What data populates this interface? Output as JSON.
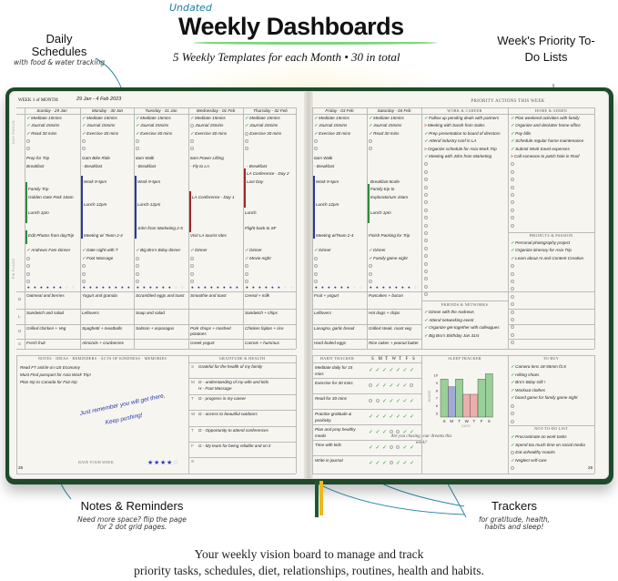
{
  "header": {
    "tag": "Undated",
    "title": "Weekly Dashboards",
    "subtitle": "5 Weekly Templates for each Month  •  30 in total"
  },
  "annotations": {
    "daily": {
      "title": "Daily Schedules",
      "note": "with food & water tracking"
    },
    "priority": {
      "title": "Week's Priority To-Do Lists"
    },
    "notes": {
      "title": "Notes & Reminders",
      "note": "Need more space? flip the page for 2 dot grid pages."
    },
    "trackers": {
      "title": "Trackers",
      "note": "for gratitude, health, habits and sleep!"
    }
  },
  "footer": {
    "line1": "Your weekly vision board to manage and track",
    "line2": "priority tasks, schedules, diet, relationships, routines, health and habits."
  },
  "planner": {
    "week_label": "WEEK 1 of MONTH:",
    "week_range": "29 Jan  -  4 Feb 2023",
    "side_labels": {
      "focus": "DAY FOCUS",
      "evening": "PM PLANS"
    },
    "meal_labels": [
      "B",
      "L",
      "D",
      "S"
    ],
    "colors": {
      "check": "#3a9a3a",
      "arrow": "#c0392b",
      "water": "#2a3a9a",
      "green": "#2e8b3a",
      "blue": "#2a3a9a",
      "red": "#9a2a2a"
    },
    "days": [
      {
        "name": "Sunday  -  29 Jan",
        "focus": [
          [
            "Meditate 15mins",
            1
          ],
          [
            "Journal 15mins",
            1
          ],
          [
            "Read 30 mins",
            1
          ]
        ],
        "schedule": [
          "Prep for Trip",
          "Breakfast",
          "",
          "",
          "Family Trip",
          "Golden Gate Park 10am",
          "",
          "Lunch 1pm",
          "",
          "",
          "Edit Photos from dayTrip"
        ],
        "evening": [
          "Andrews Fam Dinner"
        ],
        "water": 6,
        "meals": [
          "Oatmeal and berries",
          "Sandwich and salad",
          "Grilled chicken + Veg",
          "Fresh fruit"
        ]
      },
      {
        "name": "Monday  -  30 Jan",
        "focus": [
          [
            "Meditate 15mins",
            1
          ],
          [
            "Journal 15mins",
            1
          ],
          [
            "Exercise 30 mins",
            1
          ]
        ],
        "schedule": [
          "Gam Bike Ride",
          "- Breakfast",
          "",
          "Work 9-5pm",
          "",
          "",
          "Lunch 12pm",
          "",
          "",
          "",
          "Meeting w/ Team 2-4"
        ],
        "evening": [
          "Date night with T",
          "Foot Massage"
        ],
        "water": 8,
        "meals": [
          "Yogurt and granola",
          "Leftovers",
          "Spaghetti + meatballs",
          "Almonds + cranberries"
        ]
      },
      {
        "name": "Tuesday  -  31 Jan",
        "focus": [
          [
            "Meditate 15mins",
            1
          ],
          [
            "Journal 15mins",
            1
          ],
          [
            "Exercise 30 mins",
            1
          ]
        ],
        "schedule": [
          "6am Walk",
          "- Breakfast",
          "",
          "Work 9-5pm",
          "",
          "",
          "Lunch 12pm",
          "",
          "",
          "John from Marketing 2-5"
        ],
        "evening": [
          "Big Bro's Bday dinner"
        ],
        "water": 6,
        "meals": [
          "Scrambled eggs and toast",
          "Soup and salad",
          "Salmon + asparagus",
          ""
        ]
      },
      {
        "name": "Wednesday  -  01 Feb",
        "focus": [
          [
            "Meditate 15mins",
            1
          ],
          [
            "Journal 15mins",
            0
          ],
          [
            "Exercise 30 mins",
            1
          ]
        ],
        "schedule": [
          "6am Power Lifting",
          "- Fly to LA",
          "",
          "",
          "",
          "LA Conference - Day 1",
          "",
          "",
          "",
          "",
          "Visit LA tourist sites"
        ],
        "evening": [
          "Dinner"
        ],
        "water": 8,
        "meals": [
          "Smoothie and toast",
          "",
          "Pork chops + mashed potatoes",
          "Greek yogurt"
        ]
      },
      {
        "name": "Thursday  -  02 Feb",
        "focus": [
          [
            "Meditate 15mins",
            1
          ],
          [
            "Journal 15mins",
            1
          ],
          [
            "Exercise 30 mins",
            0
          ]
        ],
        "schedule": [
          "",
          "- Breakfast",
          "LA Conference - Day 2",
          "Last Day",
          "",
          "",
          "",
          "Lunch",
          "",
          "Flight back to SF"
        ],
        "evening": [
          "Dinner",
          "Movie night"
        ],
        "water": 6,
        "meals": [
          "Cereal + milk",
          "Sandwich + chips",
          "Chicken fajitas + rice",
          "Carrots + hummus"
        ]
      },
      {
        "name": "Friday  -  03 Feb",
        "focus": [
          [
            "Meditate 15mins",
            1
          ],
          [
            "Journal 15mins",
            1
          ],
          [
            "Exercise 30 mins",
            1
          ]
        ],
        "schedule": [
          "6am Walk",
          "- Breakfast",
          "",
          "Work 9-5pm",
          "",
          "",
          "Lunch 12pm",
          "",
          "",
          "",
          "Meeting w/Team 2-4"
        ],
        "evening": [
          "Dinner"
        ],
        "water": 6,
        "meals": [
          "Fruit + yogurt",
          "Leftovers",
          "Lasagna, garlic bread",
          "Hard-boiled eggs"
        ]
      },
      {
        "name": "Saturday  -  04 Feb",
        "focus": [
          [
            "Meditate 15mins",
            1
          ],
          [
            "Journal 15mins",
            1
          ],
          [
            "Read 30 mins",
            1
          ]
        ],
        "schedule": [
          "",
          "",
          "",
          "Breakfast 8cafe",
          "Family trip to",
          "Exploratorium 10am",
          "",
          "Lunch 1pm",
          "",
          "",
          "Finish Packing for Trip"
        ],
        "evening": [
          "Dinner",
          "Family game night"
        ],
        "water": 7,
        "meals": [
          "Pancakes + bacon",
          "Hot dogs + chips",
          "Grilled steak, roast veg",
          "Rice cakes + peanut butter"
        ]
      }
    ],
    "priority": {
      "title": "PRIORITY ACTIONS THIS WEEK",
      "work": {
        "title": "WORK & CAREER",
        "items": [
          [
            "Follow up pending deals with partners",
            "done"
          ],
          [
            "Meeting with Sarah from Sales",
            "moved"
          ],
          [
            "Prep presentation to board of directors",
            "done"
          ],
          [
            "Attend industry conf in LA",
            "done"
          ],
          [
            "Organize schedule for Asia Work Trip",
            "moved"
          ],
          [
            "Meeting with John from Marketing",
            "done"
          ]
        ]
      },
      "home": {
        "title": "HOME & ADMIN",
        "items": [
          [
            "Plan weekend activities with family",
            "done"
          ],
          [
            "Organize and declutter home office",
            "done"
          ],
          [
            "Pay bills",
            "done"
          ],
          [
            "Schedule regular home maintenance",
            "done"
          ],
          [
            "Submit Work travel expenses",
            "done"
          ],
          [
            "Call someone to patch hole in Roof",
            "moved"
          ]
        ]
      },
      "projects": {
        "title": "PROJECTS & PASSION",
        "items": [
          [
            "Personal photography project",
            "done"
          ],
          [
            "Organize itinerary for Asia Trip",
            "done"
          ],
          [
            "Learn about AI and Content Creation",
            "done"
          ]
        ]
      },
      "friends": {
        "title": "FRIENDS & NETWORKS",
        "items": [
          [
            "Dinner with the Andrews",
            "done"
          ],
          [
            "Attend networking event",
            "done"
          ],
          [
            "Organize get-together with colleagues",
            "done"
          ],
          [
            "Big Bro's Birthday Jan 31st",
            "done"
          ]
        ]
      }
    },
    "notes": {
      "title": "NOTES · IDEAS · REMINDERS · ACTS OF KINDNESS · MEMORIES",
      "lines": [
        "Read FT article on US Economy",
        "Must Find passport for Asia Work Trip!",
        "Plan trip to Canada for Fair trip"
      ],
      "handwritten": [
        "Just remember you will get there,",
        "Keep pushing!"
      ],
      "rate_label": "RATE YOUR WEEK",
      "rating": 4,
      "rating_max": 5,
      "page": "28"
    },
    "gratitude": {
      "title": "GRATITUDE & HEALTH",
      "rows": [
        [
          "S",
          [
            "Grateful for the health of my family"
          ]
        ],
        [
          "M",
          [
            "G - understanding of my wife and kids",
            "H - Foot Massage"
          ]
        ],
        [
          "T",
          [
            "G - progress in my career"
          ]
        ],
        [
          "W",
          [
            "G - access to beautiful outdoors"
          ]
        ],
        [
          "T",
          [
            "G - Opportunity to attend conferences"
          ]
        ],
        [
          "F",
          [
            "G - My team for being reliable and on it"
          ]
        ],
        [
          "S",
          []
        ]
      ]
    },
    "habits": {
      "title": "HABIT TRACKER",
      "days": [
        "S",
        "M",
        "T",
        "W",
        "T",
        "F",
        "S"
      ],
      "rows": [
        [
          "Meditate daily for 15 mins",
          [
            1,
            1,
            1,
            1,
            1,
            1,
            1
          ]
        ],
        [
          "Exercise for 30 mins",
          [
            0,
            1,
            1,
            1,
            1,
            1,
            0
          ]
        ],
        [
          "Read for 30 mins",
          [
            0,
            0,
            1,
            1,
            1,
            1,
            1
          ]
        ],
        [
          "Practice gratitude & positivity",
          [
            1,
            1,
            1,
            1,
            1,
            1,
            1
          ]
        ],
        [
          "Plan and prep healthy meals",
          [
            1,
            1,
            1,
            0,
            0,
            1,
            1
          ]
        ],
        [
          "Time with kids",
          [
            1,
            1,
            1,
            0,
            0,
            1,
            1
          ]
        ],
        [
          "Write in journal",
          [
            1,
            1,
            1,
            0,
            1,
            1,
            1
          ]
        ]
      ]
    },
    "sleep": {
      "title": "SLEEP TRACKER",
      "question": "Are you chasing your dreams this week?"
    },
    "to_buy": {
      "title": "TO BUY",
      "items": [
        "Camera lens 18-55mm f3.5",
        "Hiking shoes",
        "Bro's Bday Gift !",
        "Workout clothes",
        "board game for family game night"
      ]
    },
    "not_to_do": {
      "title": "NOT-TO-DO LIST",
      "items": [
        [
          "Procrastinate on work tasks",
          1
        ],
        [
          "Spend too much time on social media",
          1
        ],
        [
          "Eat unhealthy snacks",
          0
        ],
        [
          "Neglect self-care",
          1
        ]
      ],
      "page": "29"
    }
  },
  "chart_data": {
    "type": "bar",
    "categories": [
      "S",
      "M",
      "T",
      "W",
      "T",
      "F",
      "S"
    ],
    "values": [
      9.5,
      8.5,
      9.5,
      7.5,
      7.5,
      9.5,
      10.2
    ],
    "colors": [
      "#4caf50",
      "#5c6bc0",
      "#4caf50",
      "#e57373",
      "#e57373",
      "#4caf50",
      "#4caf50"
    ],
    "ylabel": "HOURS",
    "xlabel": "DAYS",
    "yticks": [
      5,
      6,
      7,
      8,
      9,
      10
    ],
    "ylim": [
      4.5,
      10.5
    ],
    "grid": false
  }
}
